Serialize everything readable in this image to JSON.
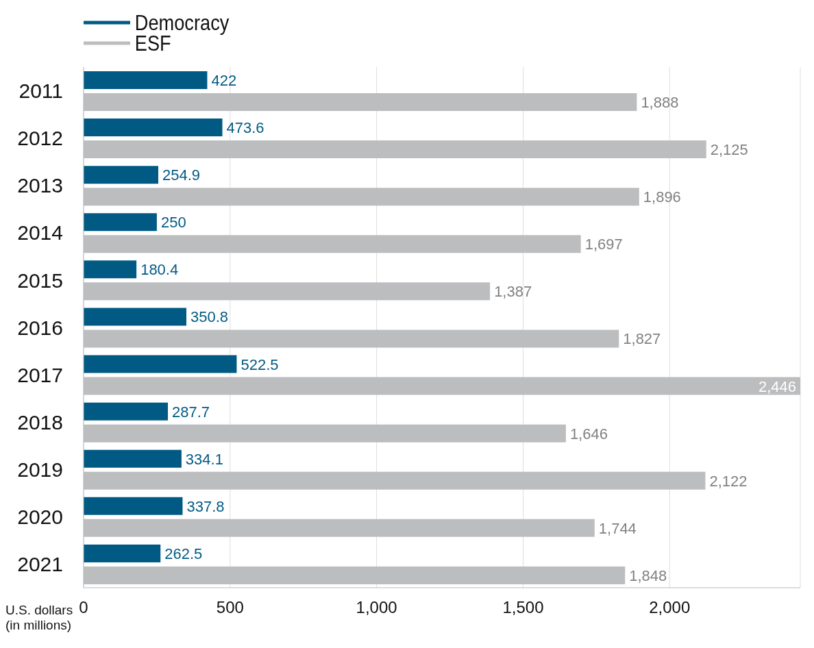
{
  "chart_data": {
    "type": "bar",
    "orientation": "horizontal",
    "xlabel": "U.S. dollars (in millions)",
    "categories": [
      "2011",
      "2012",
      "2013",
      "2014",
      "2015",
      "2016",
      "2017",
      "2018",
      "2019",
      "2020",
      "2021"
    ],
    "series": [
      {
        "name": "Democracy",
        "color": "#005a84",
        "values": [
          422,
          473.6,
          254.9,
          250,
          180.4,
          350.8,
          522.5,
          287.7,
          334.1,
          337.8,
          262.5
        ],
        "value_labels": [
          "422",
          "473.6",
          "254.9",
          "250",
          "180.4",
          "350.8",
          "522.5",
          "287.7",
          "334.1",
          "337.8",
          "262.5"
        ]
      },
      {
        "name": "ESF",
        "color": "#bcbdbf",
        "values": [
          1888,
          2125,
          1896,
          1697,
          1387,
          1827,
          2446,
          1646,
          2122,
          1744,
          1848
        ],
        "value_labels": [
          "1,888",
          "2,125",
          "1,896",
          "1,697",
          "1,387",
          "1,827",
          "2,446",
          "1,646",
          "2,122",
          "1,744",
          "1,848"
        ]
      }
    ],
    "xlim": [
      0,
      2446
    ],
    "xticks": [
      0,
      500,
      {
        "value": 1000,
        "label": "1,000"
      },
      {
        "value": 1500,
        "label": "1,500"
      },
      {
        "value": 2000,
        "label": "2,000"
      }
    ],
    "grid": "x",
    "legend": "top left"
  }
}
